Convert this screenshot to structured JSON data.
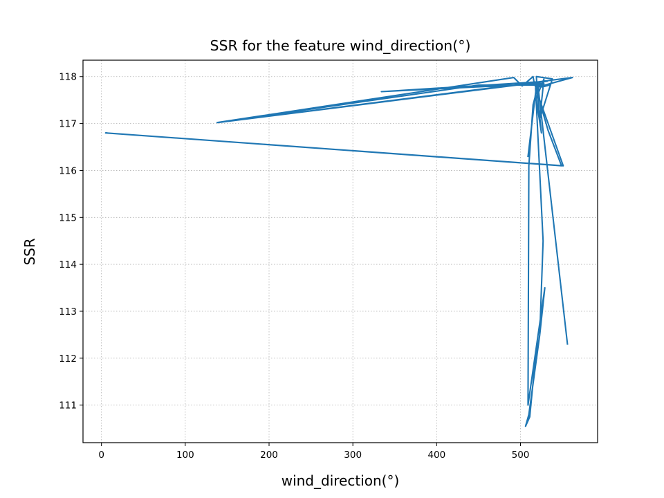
{
  "chart_data": {
    "type": "line",
    "title": "SSR for the feature wind_direction(°)",
    "xlabel": "wind_direction(°)",
    "ylabel": "SSR",
    "xlim": [
      -22,
      592
    ],
    "ylim": [
      110.2,
      118.35
    ],
    "xticks": [
      0,
      100,
      200,
      300,
      400,
      500
    ],
    "yticks": [
      111,
      112,
      113,
      114,
      115,
      116,
      117,
      118
    ],
    "grid": true,
    "series_color": "#1f77b4",
    "series": [
      {
        "x": [
          509,
          519,
          518,
          528,
          523,
          538,
          519,
          520,
          525,
          518,
          515,
          510,
          509,
          529,
          523,
          510,
          506,
          511,
          517,
          523,
          527,
          518,
          551,
          5,
          549,
          533,
          516,
          515,
          502,
          492,
          138,
          450,
          535,
          526,
          513,
          528,
          334,
          532,
          139,
          562,
          521,
          556
        ],
        "y": [
          116.3,
          117.8,
          117.5,
          117.95,
          117.1,
          117.95,
          118.0,
          117.65,
          116.8,
          117.6,
          117.4,
          116.1,
          111.0,
          113.5,
          112.5,
          110.8,
          110.55,
          110.75,
          111.85,
          112.5,
          114.5,
          117.75,
          116.1,
          116.8,
          116.1,
          116.85,
          117.9,
          118.0,
          117.8,
          117.98,
          117.02,
          117.82,
          117.82,
          117.78,
          117.85,
          117.85,
          117.68,
          117.9,
          117.02,
          117.98,
          117.78,
          112.3
        ]
      }
    ]
  }
}
